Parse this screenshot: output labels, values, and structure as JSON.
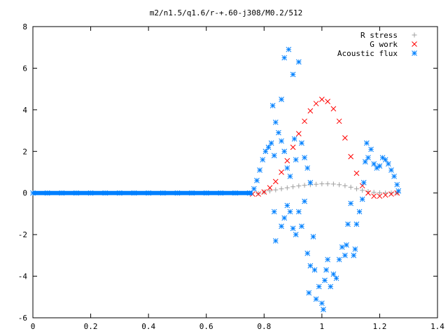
{
  "chart_data": {
    "type": "scatter",
    "title": "m2/n1.5/q1.6/r-+.60-j308/M0.2/512",
    "xlabel": "",
    "ylabel": "",
    "xlim": [
      0,
      1.4
    ],
    "ylim": [
      -6,
      8
    ],
    "x_ticks": [
      "0",
      "0.2",
      "0.4",
      "0.6",
      "0.8",
      "1",
      "1.2",
      "1.4"
    ],
    "y_ticks": [
      "-6",
      "-4",
      "-2",
      "0",
      "2",
      "4",
      "6",
      "8"
    ],
    "grid": false,
    "legend_position": "top-right",
    "series": [
      {
        "name": "R stress",
        "marker": "+",
        "color": "#a0a0a0",
        "points": [
          [
            0.78,
            -0.02
          ],
          [
            0.8,
            0.05
          ],
          [
            0.82,
            0.1
          ],
          [
            0.84,
            0.15
          ],
          [
            0.86,
            0.2
          ],
          [
            0.88,
            0.25
          ],
          [
            0.9,
            0.3
          ],
          [
            0.92,
            0.34
          ],
          [
            0.94,
            0.37
          ],
          [
            0.96,
            0.4
          ],
          [
            0.98,
            0.42
          ],
          [
            1.0,
            0.44
          ],
          [
            1.02,
            0.44
          ],
          [
            1.04,
            0.43
          ],
          [
            1.06,
            0.4
          ],
          [
            1.08,
            0.35
          ],
          [
            1.1,
            0.28
          ],
          [
            1.12,
            0.2
          ],
          [
            1.14,
            0.13
          ],
          [
            1.16,
            0.07
          ],
          [
            1.18,
            0.03
          ],
          [
            1.2,
            0.01
          ],
          [
            1.22,
            0.0
          ],
          [
            1.24,
            0.0
          ],
          [
            1.26,
            0.0
          ]
        ]
      },
      {
        "name": "G work",
        "marker": "x",
        "color": "#ff0000",
        "points": [
          [
            0.76,
            -0.05
          ],
          [
            0.78,
            -0.05
          ],
          [
            0.8,
            0.05
          ],
          [
            0.82,
            0.25
          ],
          [
            0.84,
            0.55
          ],
          [
            0.86,
            1.0
          ],
          [
            0.88,
            1.55
          ],
          [
            0.9,
            2.2
          ],
          [
            0.92,
            2.85
          ],
          [
            0.94,
            3.45
          ],
          [
            0.96,
            3.95
          ],
          [
            0.98,
            4.3
          ],
          [
            1.0,
            4.5
          ],
          [
            1.02,
            4.4
          ],
          [
            1.04,
            4.05
          ],
          [
            1.06,
            3.45
          ],
          [
            1.08,
            2.65
          ],
          [
            1.1,
            1.75
          ],
          [
            1.12,
            0.95
          ],
          [
            1.14,
            0.35
          ],
          [
            1.16,
            0.0
          ],
          [
            1.18,
            -0.15
          ],
          [
            1.2,
            -0.15
          ],
          [
            1.22,
            -0.1
          ],
          [
            1.24,
            -0.05
          ],
          [
            1.26,
            0.0
          ]
        ]
      },
      {
        "name": "Acoustic flux",
        "marker": "*",
        "color": "#0080ff",
        "points": [
          [
            0.0,
            0.0
          ],
          [
            0.05,
            0.0
          ],
          [
            0.1,
            0.0
          ],
          [
            0.15,
            0.0
          ],
          [
            0.2,
            0.0
          ],
          [
            0.25,
            0.0
          ],
          [
            0.3,
            0.0
          ],
          [
            0.35,
            0.0
          ],
          [
            0.4,
            0.0
          ],
          [
            0.45,
            0.0
          ],
          [
            0.5,
            0.0
          ],
          [
            0.55,
            0.0
          ],
          [
            0.6,
            0.0
          ],
          [
            0.65,
            0.0
          ],
          [
            0.7,
            0.0
          ],
          [
            0.75,
            0.0
          ],
          [
            0.765,
            0.2
          ],
          [
            0.775,
            0.6
          ],
          [
            0.785,
            1.1
          ],
          [
            0.795,
            1.6
          ],
          [
            0.805,
            2.0
          ],
          [
            0.815,
            2.2
          ],
          [
            0.825,
            2.4
          ],
          [
            0.835,
            1.8
          ],
          [
            0.83,
            4.2
          ],
          [
            0.84,
            3.4
          ],
          [
            0.85,
            2.9
          ],
          [
            0.86,
            2.5
          ],
          [
            0.87,
            2.0
          ],
          [
            0.88,
            1.2
          ],
          [
            0.89,
            0.8
          ],
          [
            0.86,
            4.5
          ],
          [
            0.87,
            6.5
          ],
          [
            0.885,
            6.9
          ],
          [
            0.9,
            5.7
          ],
          [
            0.905,
            2.6
          ],
          [
            0.91,
            1.6
          ],
          [
            0.92,
            6.3
          ],
          [
            0.93,
            2.4
          ],
          [
            0.94,
            1.7
          ],
          [
            0.95,
            1.2
          ],
          [
            0.96,
            0.5
          ],
          [
            0.835,
            -0.9
          ],
          [
            0.84,
            -2.3
          ],
          [
            0.86,
            -1.6
          ],
          [
            0.87,
            -1.2
          ],
          [
            0.88,
            -0.6
          ],
          [
            0.89,
            -0.9
          ],
          [
            0.9,
            -1.7
          ],
          [
            0.91,
            -2.0
          ],
          [
            0.92,
            -0.9
          ],
          [
            0.93,
            -1.6
          ],
          [
            0.94,
            -0.4
          ],
          [
            0.95,
            -2.9
          ],
          [
            0.955,
            -4.8
          ],
          [
            0.96,
            -3.5
          ],
          [
            0.97,
            -2.1
          ],
          [
            0.975,
            -3.7
          ],
          [
            0.98,
            -5.1
          ],
          [
            0.99,
            -4.5
          ],
          [
            1.0,
            -5.3
          ],
          [
            1.005,
            -5.6
          ],
          [
            1.01,
            -4.2
          ],
          [
            1.015,
            -3.7
          ],
          [
            1.02,
            -3.2
          ],
          [
            1.03,
            -4.5
          ],
          [
            1.04,
            -3.9
          ],
          [
            1.05,
            -4.1
          ],
          [
            1.06,
            -3.2
          ],
          [
            1.07,
            -2.6
          ],
          [
            1.08,
            -3.0
          ],
          [
            1.085,
            -2.5
          ],
          [
            1.09,
            -1.5
          ],
          [
            1.1,
            -0.5
          ],
          [
            1.11,
            -3.0
          ],
          [
            1.115,
            -2.7
          ],
          [
            1.12,
            -1.5
          ],
          [
            1.13,
            -0.9
          ],
          [
            1.14,
            -0.3
          ],
          [
            1.145,
            0.5
          ],
          [
            1.15,
            1.5
          ],
          [
            1.155,
            2.4
          ],
          [
            1.16,
            1.7
          ],
          [
            1.17,
            2.1
          ],
          [
            1.18,
            1.4
          ],
          [
            1.19,
            1.2
          ],
          [
            1.2,
            1.3
          ],
          [
            1.21,
            1.7
          ],
          [
            1.22,
            1.6
          ],
          [
            1.23,
            1.4
          ],
          [
            1.24,
            1.1
          ],
          [
            1.25,
            0.8
          ],
          [
            1.26,
            0.4
          ],
          [
            1.265,
            0.1
          ]
        ]
      }
    ]
  }
}
